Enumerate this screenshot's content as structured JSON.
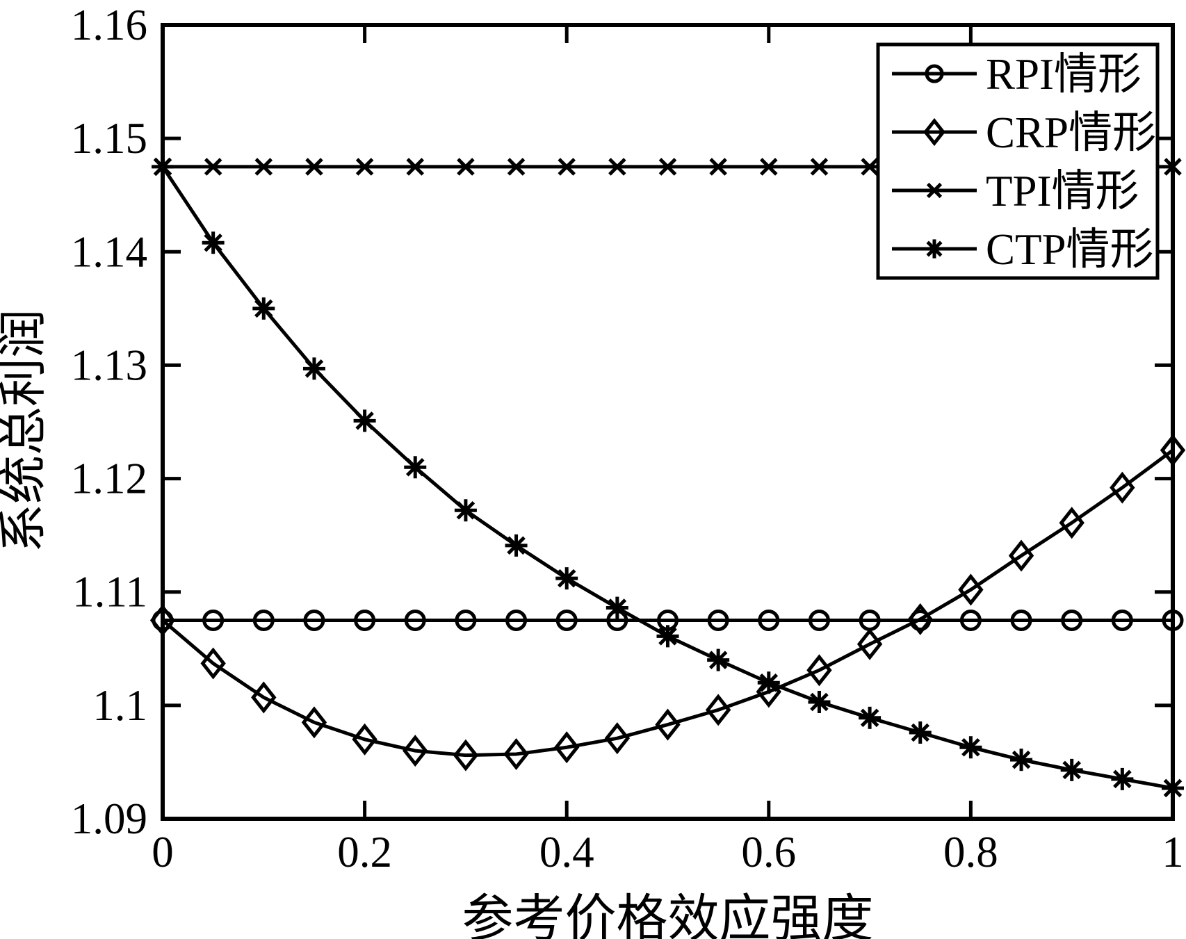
{
  "figure": {
    "background_color": "#ffffff",
    "line_color": "#000000"
  },
  "chart_data": {
    "type": "line",
    "title": "",
    "xlabel": "参考价格效应强度",
    "ylabel": "系统总利润",
    "xlim": [
      0,
      1
    ],
    "ylim": [
      1.09,
      1.16
    ],
    "grid": false,
    "legend_position": "top-right-inside",
    "x_ticks": [
      0,
      0.2,
      0.4,
      0.6,
      0.8,
      1
    ],
    "x_tick_labels": [
      "0",
      "0.2",
      "0.4",
      "0.6",
      "0.8",
      "1"
    ],
    "y_ticks": [
      1.09,
      1.1,
      1.11,
      1.12,
      1.13,
      1.14,
      1.15,
      1.16
    ],
    "y_tick_labels": [
      "1.09",
      "1.1",
      "1.11",
      "1.12",
      "1.13",
      "1.14",
      "1.15",
      "1.16"
    ],
    "x": [
      0,
      0.05,
      0.1,
      0.15,
      0.2,
      0.25,
      0.3,
      0.35,
      0.4,
      0.45,
      0.5,
      0.55,
      0.6,
      0.65,
      0.7,
      0.75,
      0.8,
      0.85,
      0.9,
      0.95,
      1
    ],
    "series": [
      {
        "id": "rpi",
        "name": "RPI情形",
        "marker": "circle",
        "values": [
          1.1075,
          1.1075,
          1.1075,
          1.1075,
          1.1075,
          1.1075,
          1.1075,
          1.1075,
          1.1075,
          1.1075,
          1.1075,
          1.1075,
          1.1075,
          1.1075,
          1.1075,
          1.1075,
          1.1075,
          1.1075,
          1.1075,
          1.1075,
          1.1075
        ]
      },
      {
        "id": "crp",
        "name": "CRP情形",
        "marker": "diamond",
        "values": [
          1.1075,
          1.1037,
          1.1007,
          1.0985,
          1.097,
          1.096,
          1.0956,
          1.0957,
          1.0963,
          1.0971,
          1.0983,
          1.0996,
          1.1012,
          1.1031,
          1.1054,
          1.1076,
          1.1102,
          1.1132,
          1.1161,
          1.1192,
          1.1225
        ]
      },
      {
        "id": "tpi",
        "name": "TPI情形",
        "marker": "x",
        "values": [
          1.1475,
          1.1475,
          1.1475,
          1.1475,
          1.1475,
          1.1475,
          1.1475,
          1.1475,
          1.1475,
          1.1475,
          1.1475,
          1.1475,
          1.1475,
          1.1475,
          1.1475,
          1.1475,
          1.1475,
          1.1475,
          1.1475,
          1.1475,
          1.1475
        ]
      },
      {
        "id": "ctp",
        "name": "CTP情形",
        "marker": "asterisk",
        "values": [
          1.1475,
          1.1408,
          1.135,
          1.1297,
          1.1251,
          1.121,
          1.1172,
          1.1141,
          1.1112,
          1.1086,
          1.1061,
          1.104,
          1.102,
          1.1003,
          1.0989,
          1.0976,
          1.0963,
          1.0952,
          1.0943,
          1.0935,
          1.0927
        ]
      }
    ]
  }
}
